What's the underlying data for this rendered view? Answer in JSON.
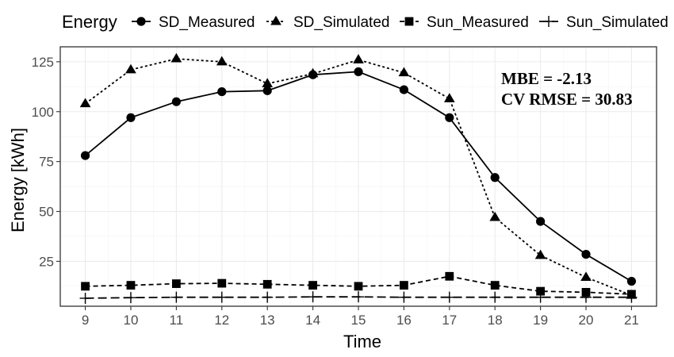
{
  "chart_data": {
    "type": "line",
    "legend": {
      "title": "Energy",
      "position": "top"
    },
    "xlabel": "Time",
    "ylabel": "Energy [kWh]",
    "x": [
      9,
      10,
      11,
      12,
      13,
      14,
      15,
      16,
      17,
      18,
      19,
      20,
      21
    ],
    "xticks": [
      "9",
      "10",
      "11",
      "12",
      "13",
      "14",
      "15",
      "16",
      "17",
      "18",
      "19",
      "20",
      "21"
    ],
    "yticks": [
      25,
      50,
      75,
      100,
      125
    ],
    "xlim": [
      8.45,
      21.55
    ],
    "ylim": [
      2.5,
      132.5
    ],
    "grid": true,
    "series": [
      {
        "name": "SD_Measured",
        "marker": "circle",
        "linestyle": "solid",
        "values": [
          78,
          97,
          105,
          110,
          110.5,
          118.5,
          120,
          111,
          97,
          67,
          45,
          28.5,
          15
        ]
      },
      {
        "name": "SD_Simulated",
        "marker": "triangle",
        "linestyle": "dotted",
        "values": [
          104,
          121,
          126.5,
          125,
          114,
          119,
          126,
          119.5,
          106.5,
          47,
          28,
          17,
          8
        ]
      },
      {
        "name": "Sun_Measured",
        "marker": "square",
        "linestyle": "dashed",
        "values": [
          12.5,
          13,
          13.8,
          14,
          13.5,
          13,
          12.5,
          13,
          17.5,
          13,
          10,
          9.5,
          8.5
        ]
      },
      {
        "name": "Sun_Simulated",
        "marker": "plus",
        "linestyle": "longdash",
        "values": [
          6.5,
          6.8,
          7,
          7,
          7,
          7.2,
          7.2,
          7,
          7,
          7,
          7,
          7,
          7
        ]
      }
    ],
    "annotations": [
      "MBE = -2.13",
      "CV RMSE = 30.83"
    ]
  }
}
